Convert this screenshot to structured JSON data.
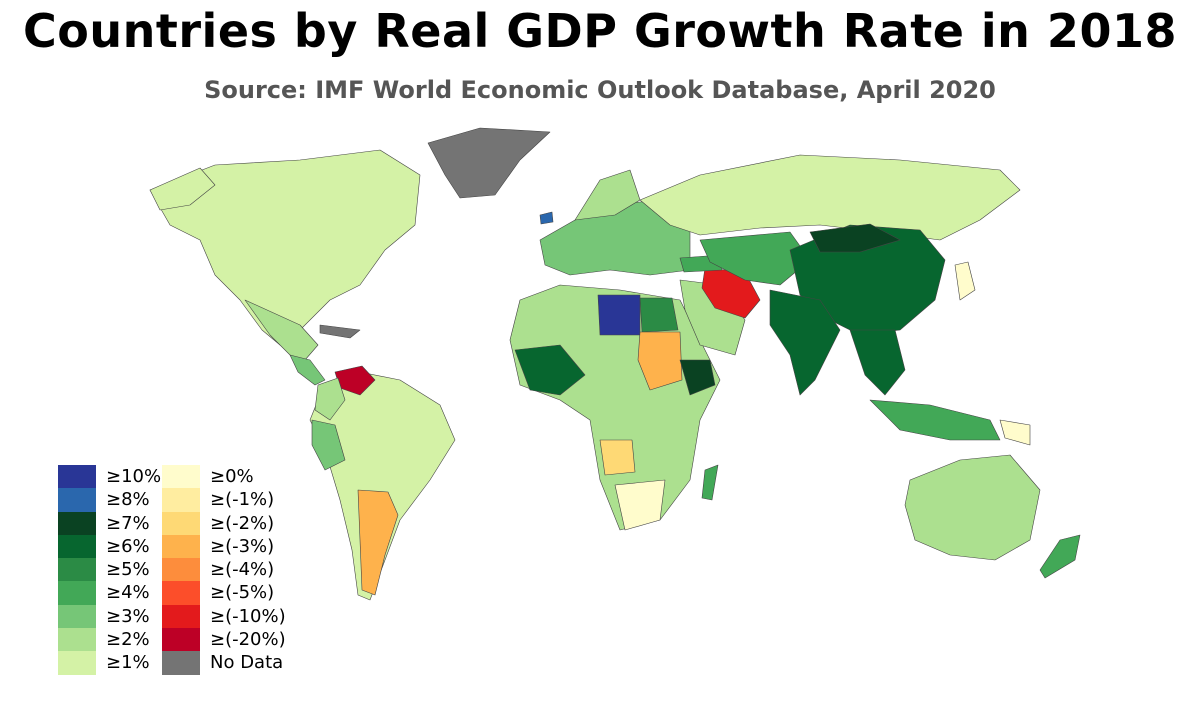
{
  "title": "Countries by Real GDP Growth Rate in 2018",
  "subtitle": "Source: IMF World Economic Outlook Database, April 2020",
  "legend": {
    "left": [
      {
        "label": "≥10%",
        "color": "#293696"
      },
      {
        "label": "≥8%",
        "color": "#2a67ad"
      },
      {
        "label": "≥7%",
        "color": "#0a4222"
      },
      {
        "label": "≥6%",
        "color": "#07662f"
      },
      {
        "label": "≥5%",
        "color": "#2b8b45"
      },
      {
        "label": "≥4%",
        "color": "#42a857"
      },
      {
        "label": "≥3%",
        "color": "#76c677"
      },
      {
        "label": "≥2%",
        "color": "#ace08f"
      },
      {
        "label": "≥1%",
        "color": "#d4f2a6"
      }
    ],
    "right": [
      {
        "label": "≥0%",
        "color": "#fffccc"
      },
      {
        "label": "≥(-1%)",
        "color": "#ffeda0"
      },
      {
        "label": "≥(-2%)",
        "color": "#fed975"
      },
      {
        "label": "≥(-3%)",
        "color": "#feb24c"
      },
      {
        "label": "≥(-4%)",
        "color": "#fd8d3c"
      },
      {
        "label": "≥(-5%)",
        "color": "#fc4e2a"
      },
      {
        "label": "≥(-10%)",
        "color": "#e31a1c"
      },
      {
        "label": "≥(-20%)",
        "color": "#bd0026"
      },
      {
        "label": "No Data",
        "color": "#747474"
      }
    ]
  },
  "map_regions": [
    {
      "region": "North America",
      "color": "#d4f2a6"
    },
    {
      "region": "Greenland",
      "color": "#747474"
    },
    {
      "region": "South America",
      "color": "#d4f2a6"
    },
    {
      "region": "Argentina",
      "color": "#feb24c"
    },
    {
      "region": "Venezuela",
      "color": "#bd0026"
    },
    {
      "region": "Libya",
      "color": "#293696"
    },
    {
      "region": "Iran",
      "color": "#e31a1c"
    },
    {
      "region": "China",
      "color": "#07662f"
    },
    {
      "region": "India",
      "color": "#07662f"
    },
    {
      "region": "Russia",
      "color": "#d4f2a6"
    },
    {
      "region": "Australia",
      "color": "#ace08f"
    },
    {
      "region": "Sudan",
      "color": "#feb24c"
    },
    {
      "region": "Angola",
      "color": "#fed975"
    },
    {
      "region": "Ethiopia",
      "color": "#0a4222"
    }
  ]
}
